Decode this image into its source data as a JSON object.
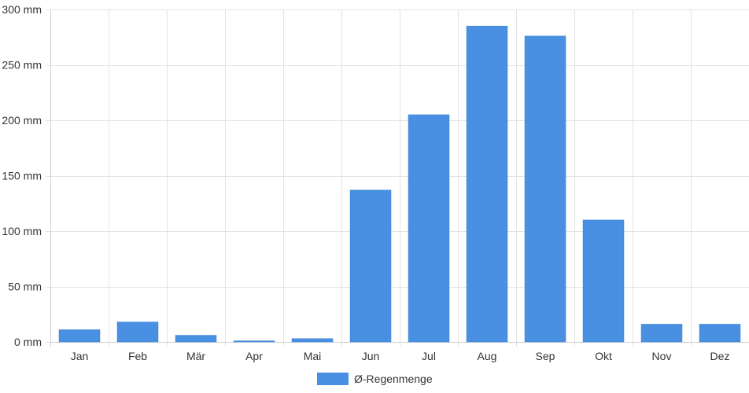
{
  "chart_data": {
    "type": "bar",
    "categories": [
      "Jan",
      "Feb",
      "Mär",
      "Apr",
      "Mai",
      "Jun",
      "Jul",
      "Aug",
      "Sep",
      "Okt",
      "Nov",
      "Dez"
    ],
    "series": [
      {
        "name": "Ø-Regenmenge",
        "values": [
          11,
          18,
          6,
          1,
          3,
          137,
          205,
          285,
          276,
          110,
          16,
          16
        ],
        "color": "#4a90e2"
      }
    ],
    "ylim": [
      0,
      300
    ],
    "yticks": [
      0,
      50,
      100,
      150,
      200,
      250,
      300
    ],
    "yunit": "mm",
    "grid": true,
    "legend_position": "bottom"
  }
}
